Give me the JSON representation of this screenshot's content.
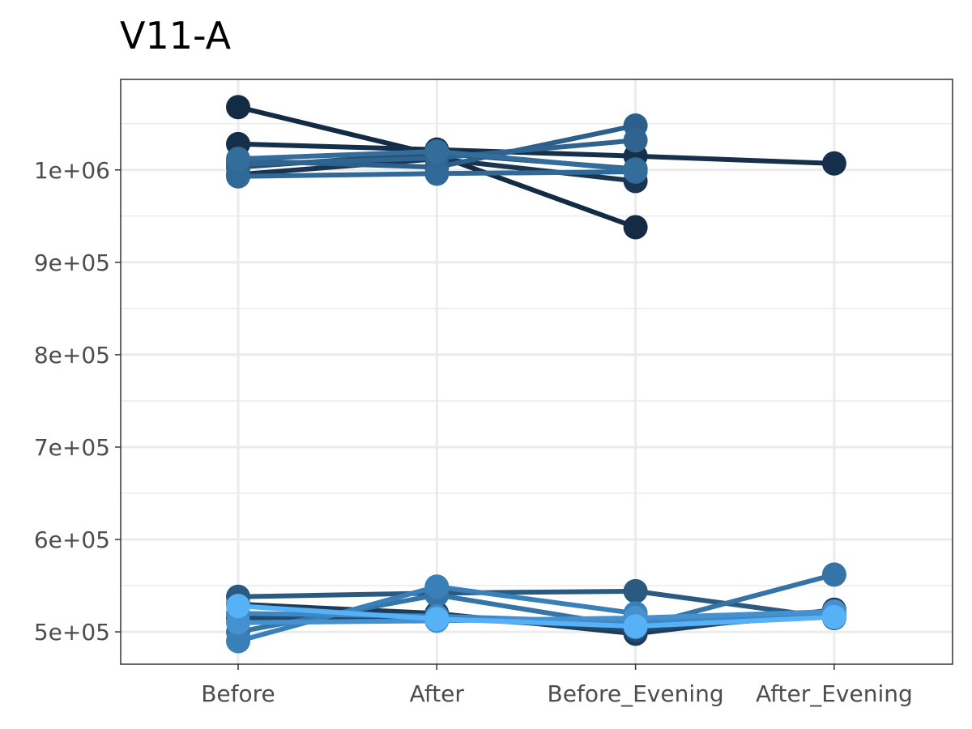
{
  "chart_data": {
    "type": "line",
    "title": "V11-A",
    "xlabel": "",
    "ylabel": "",
    "categories": [
      "Before",
      "After",
      "Before_Evening",
      "After_Evening"
    ],
    "y_ticks": [
      500000,
      600000,
      700000,
      800000,
      900000,
      1000000
    ],
    "y_tick_labels": [
      "5e+05",
      "6e+05",
      "7e+05",
      "8e+05",
      "9e+05",
      "1e+06"
    ],
    "ylim": [
      465000,
      1098000
    ],
    "grid": true,
    "legend": "none",
    "series": [
      {
        "color": "#132b43",
        "values": [
          1068000,
          1016000,
          938000,
          null
        ]
      },
      {
        "color": "#16304b",
        "values": [
          1028000,
          1022000,
          1015000,
          1007000
        ]
      },
      {
        "color": "#1a3552",
        "values": [
          995000,
          1012000,
          988000,
          null
        ]
      },
      {
        "color": "#234e6f",
        "values": [
          1003000,
          1018000,
          1001000,
          null
        ]
      },
      {
        "color": "#2c5f89",
        "values": [
          1010000,
          1003000,
          1048000,
          null
        ]
      },
      {
        "color": "#2f6491",
        "values": [
          1006000,
          1013000,
          1032000,
          null
        ]
      },
      {
        "color": "#306997",
        "values": [
          993000,
          996000,
          998000,
          null
        ]
      },
      {
        "color": "#336d9c",
        "values": [
          1012000,
          1020000,
          1000000,
          null
        ]
      },
      {
        "color": "#1d3c5c",
        "values": [
          530000,
          520000,
          498000,
          524000
        ]
      },
      {
        "color": "#244a6b",
        "values": [
          515000,
          516000,
          502000,
          519000
        ]
      },
      {
        "color": "#2a5a80",
        "values": [
          538000,
          542000,
          544000,
          515000
        ]
      },
      {
        "color": "#3574a6",
        "values": [
          500000,
          540000,
          505000,
          562000
        ]
      },
      {
        "color": "#3a80b8",
        "values": [
          490000,
          549000,
          520000,
          null
        ]
      },
      {
        "color": "#3e87c2",
        "values": [
          520000,
          517000,
          510000,
          520000
        ]
      },
      {
        "color": "#4591d0",
        "values": [
          510000,
          512000,
          515000,
          522000
        ]
      },
      {
        "color": "#56b1f7",
        "values": [
          528000,
          514000,
          506000,
          516000
        ]
      }
    ]
  }
}
